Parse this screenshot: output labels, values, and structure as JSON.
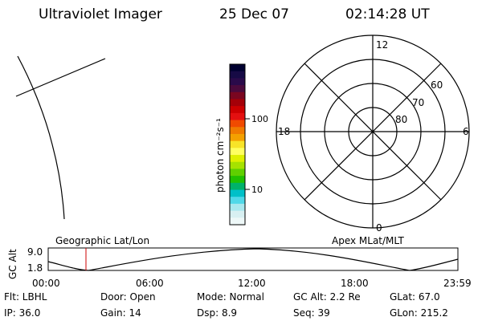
{
  "header": {
    "instrument": "Ultraviolet Imager",
    "date": "25 Dec 07",
    "time": "02:14:28 UT"
  },
  "colorbar": {
    "unit_label": "photon cm⁻²s⁻¹",
    "ticks": [
      "100",
      "10"
    ],
    "colors": [
      "#000030",
      "#160a45",
      "#2a0a4a",
      "#4b0a3c",
      "#7a0620",
      "#a40008",
      "#cc0000",
      "#e41010",
      "#f04a00",
      "#f07a00",
      "#f4a000",
      "#f8e428",
      "#ffff60",
      "#dff000",
      "#a6e200",
      "#5fd000",
      "#20c000",
      "#00b26a",
      "#00c0c8",
      "#50d8e8",
      "#a8e8ee",
      "#d8f0f2",
      "#eef8f8"
    ]
  },
  "polar_plot": {
    "mlt_labels": {
      "top": "12",
      "left": "18",
      "right": "6",
      "bottom": "0"
    },
    "lat_labels": [
      "60",
      "70",
      "80"
    ]
  },
  "labels": {
    "geo": "Geographic Lat/Lon",
    "apex": "Apex MLat/MLT"
  },
  "alt_plot": {
    "ylabel": "GC Alt",
    "ymax": "9.0",
    "ymin": "1.8",
    "xticks": [
      "00:00",
      "06:00",
      "12:00",
      "18:00",
      "23:59"
    ]
  },
  "status": {
    "flt": "Flt: LBHL",
    "door": "Door: Open",
    "mode": "Mode: Normal",
    "gcalt": "GC Alt: 2.2 Re",
    "glat": "GLat:  67.0",
    "ip": "IP: 36.0",
    "gain": "Gain: 14",
    "dsp": "Dsp:    8.9",
    "seq": "Seq: 39",
    "glon": "GLon: 215.2"
  }
}
